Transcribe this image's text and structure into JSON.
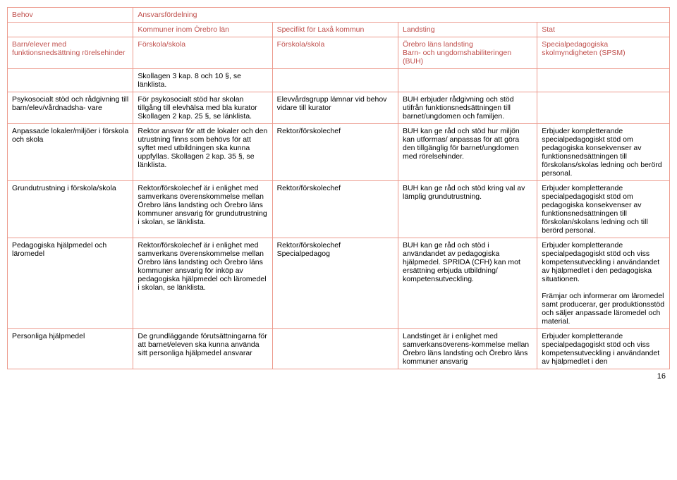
{
  "colors": {
    "border": "#ec9b8e",
    "header_text": "#c0504d",
    "body_text": "#000000",
    "background": "#ffffff"
  },
  "fonts": {
    "family": "Arial",
    "body_size_pt": 8,
    "header_size_pt": 8
  },
  "page_number": "16",
  "header": {
    "behov": "Behov",
    "ansvars": "Ansvarsfördelning",
    "kommuner": "Kommuner inom Örebro län",
    "specifikt": "Specifikt för Laxå kommun",
    "landsting": "Landsting",
    "stat": "Stat"
  },
  "group_header": {
    "behov": "Barn/elever med funktionsnedsättning rörelsehinder",
    "kom": "Förskola/skola",
    "spec": "Förskola/skola",
    "land": "Örebro läns landsting\nBarn- och ungdomshabiliteringen (BUH)",
    "stat": "Specialpedagogiska skolmyndigheten (SPSM)"
  },
  "rows": [
    {
      "behov": "",
      "kom": "Skollagen 3 kap. 8 och 10 §, se länklista.",
      "spec": "",
      "land": "",
      "stat": ""
    },
    {
      "behov": "Psykosocialt stöd och rådgivning till barn/elev/vårdnadsha- vare",
      "kom": "För psykosocialt stöd har skolan tillgång till elevhälsa med bla kurator\nSkollagen 2 kap. 25 §, se länklista.",
      "spec": "Elevvårdsgrupp lämnar vid behov vidare till kurator",
      "land": "BUH erbjuder rådgivning och stöd utifrån funktionsnedsättningen till barnet/ungdomen och familjen.",
      "stat": ""
    },
    {
      "behov": "Anpassade lokaler/miljöer i förskola och skola",
      "kom": "Rektor ansvar för att de lokaler och den utrustning finns som behövs för att syftet med utbildningen ska kunna uppfyllas. Skollagen 2 kap. 35 §, se länklista.",
      "spec": "Rektor/förskolechef",
      "land": "BUH kan ge råd och stöd hur miljön kan utformas/ anpassas för att göra den tillgänglig för barnet/ungdomen med rörelsehinder.",
      "stat": "Erbjuder kompletterande specialpedagogiskt stöd om pedagogiska konsekvenser av funktionsnedsättningen till förskolans/skolas ledning och berörd personal."
    },
    {
      "behov": "Grundutrustning i förskola/skola",
      "kom": "Rektor/förskolechef är i enlighet med samverkans överenskommelse mellan Örebro läns landsting och Örebro läns kommuner ansvarig för grundutrustning i skolan, se länklista.",
      "spec": "Rektor/förskolechef",
      "land": "BUH kan ge råd och stöd kring val av lämplig grundutrustning.",
      "stat": "Erbjuder kompletterande specialpedagogiskt stöd om pedagogiska konsekvenser av funktionsnedsättningen till förskolan/skolans ledning och till berörd personal."
    },
    {
      "behov": "Pedagogiska hjälpmedel och läromedel",
      "kom": "Rektor/förskolechef är i enlighet med samverkans överenskommelse mellan Örebro läns landsting och Örebro läns kommuner ansvarig för inköp av pedagogiska hjälpmedel och läromedel i skolan, se länklista.",
      "spec": "Rektor/förskolechef\nSpecialpedagog",
      "land": "BUH kan ge råd och stöd i användandet av pedagogiska hjälpmedel. SPRIDA (CFH) kan mot ersättning erbjuda utbildning/ kompetensutveckling.",
      "stat": "Erbjuder kompletterande specialpedagogiskt stöd och viss kompetensutveckling i användandet av hjälpmedlet i den pedagogiska situationen.\n\nFrämjar och informerar om läromedel samt producerar, ger produktionsstöd och säljer anpassade läromedel och material."
    },
    {
      "behov": "Personliga hjälpmedel",
      "kom": "De grundläggande förutsättningarna för att barnet/eleven ska kunna använda sitt personliga hjälpmedel ansvarar",
      "spec": "",
      "land": "Landstinget är i enlighet med samverkansöverens-kommelse mellan Örebro läns landsting och Örebro läns kommuner ansvarig",
      "stat": "Erbjuder kompletterande specialpedagogiskt stöd och viss kompetensutveckling i användandet av hjälpmedlet i den"
    }
  ]
}
